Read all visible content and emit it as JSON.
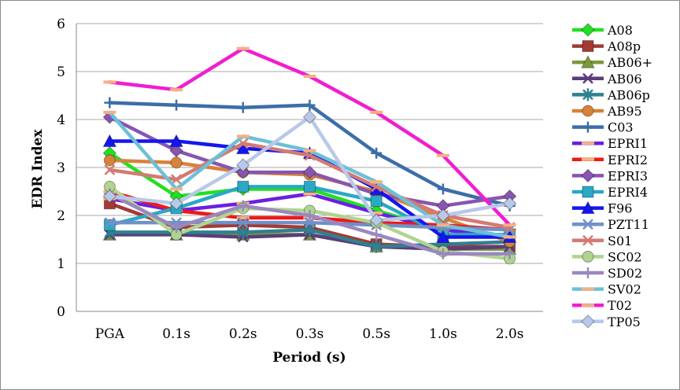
{
  "chart_data": {
    "type": "line",
    "title": "",
    "xlabel": "Period (s)",
    "ylabel": "EDR Index",
    "categories": [
      "PGA",
      "0.1s",
      "0.2s",
      "0.3s",
      "0.5s",
      "1.0s",
      "2.0s"
    ],
    "ylim": [
      0,
      6
    ],
    "yticks": [
      0,
      1,
      2,
      3,
      4,
      5,
      6
    ],
    "grid": true,
    "legend": "right",
    "series": [
      {
        "name": "A08",
        "color": "#22e022",
        "marker": "diamond",
        "values": [
          3.3,
          2.4,
          2.55,
          2.55,
          2.1,
          1.7,
          1.55
        ]
      },
      {
        "name": "A08p",
        "color": "#a33a35",
        "marker": "square",
        "values": [
          2.25,
          1.75,
          1.8,
          1.75,
          1.4,
          1.35,
          1.35
        ]
      },
      {
        "name": "AB06+",
        "color": "#7a9a3a",
        "marker": "triangle",
        "values": [
          1.6,
          1.6,
          1.6,
          1.6,
          1.35,
          1.3,
          1.3
        ]
      },
      {
        "name": "AB06",
        "color": "#5b3d7a",
        "marker": "x",
        "values": [
          1.6,
          1.6,
          1.55,
          1.6,
          1.35,
          1.3,
          1.35
        ]
      },
      {
        "name": "AB06p",
        "color": "#2f8090",
        "marker": "star",
        "values": [
          1.65,
          1.65,
          1.65,
          1.7,
          1.35,
          1.4,
          1.45
        ]
      },
      {
        "name": "AB95",
        "color": "#d9823a",
        "marker": "circle",
        "values": [
          3.15,
          3.1,
          2.9,
          2.85,
          2.5,
          1.95,
          1.45
        ]
      },
      {
        "name": "C03",
        "color": "#3c6ea8",
        "marker": "plus",
        "values": [
          4.35,
          4.3,
          4.25,
          4.3,
          3.3,
          2.55,
          2.2
        ]
      },
      {
        "name": "EPRI1",
        "color": "#6a20e0",
        "marker": "dash",
        "values": [
          2.35,
          2.1,
          2.25,
          2.45,
          2.05,
          1.7,
          1.55
        ]
      },
      {
        "name": "EPRI2",
        "color": "#f01818",
        "marker": "dash",
        "values": [
          2.5,
          2.1,
          1.95,
          1.95,
          1.85,
          1.8,
          1.7
        ]
      },
      {
        "name": "EPRI3",
        "color": "#8855b0",
        "marker": "diamond",
        "values": [
          4.05,
          3.35,
          2.9,
          2.9,
          2.45,
          2.2,
          2.4
        ]
      },
      {
        "name": "EPRI4",
        "color": "#2aa8c4",
        "marker": "square",
        "values": [
          1.8,
          2.15,
          2.6,
          2.6,
          2.3,
          1.6,
          1.6
        ]
      },
      {
        "name": "F96",
        "color": "#1515f0",
        "marker": "triangle",
        "values": [
          3.55,
          3.55,
          3.4,
          3.3,
          2.55,
          1.55,
          1.55
        ]
      },
      {
        "name": "PZT11",
        "color": "#7090c8",
        "marker": "x",
        "values": [
          1.85,
          1.85,
          1.85,
          1.85,
          1.8,
          1.75,
          1.7
        ]
      },
      {
        "name": "S01",
        "color": "#d47a72",
        "marker": "x",
        "values": [
          2.95,
          2.75,
          3.5,
          3.25,
          2.6,
          2.0,
          1.75
        ]
      },
      {
        "name": "SC02",
        "color": "#b0d490",
        "marker": "circle",
        "values": [
          2.6,
          1.6,
          2.15,
          2.1,
          1.85,
          1.25,
          1.1
        ]
      },
      {
        "name": "SD02",
        "color": "#9a88c0",
        "marker": "plus",
        "values": [
          2.45,
          1.75,
          2.2,
          2.0,
          1.6,
          1.2,
          1.2
        ]
      },
      {
        "name": "SV02",
        "color": "#6cc0d8",
        "marker": "dash",
        "values": [
          4.15,
          2.55,
          3.65,
          3.35,
          2.7,
          1.8,
          1.55
        ]
      },
      {
        "name": "T02",
        "color": "#f01ed0",
        "marker": "dash",
        "values": [
          4.78,
          4.62,
          5.48,
          4.9,
          4.15,
          3.25,
          1.8
        ]
      },
      {
        "name": "TP05",
        "color": "#b8c8e8",
        "marker": "diamond",
        "values": [
          2.4,
          2.25,
          3.05,
          4.05,
          1.9,
          2.0,
          2.25
        ]
      }
    ]
  }
}
